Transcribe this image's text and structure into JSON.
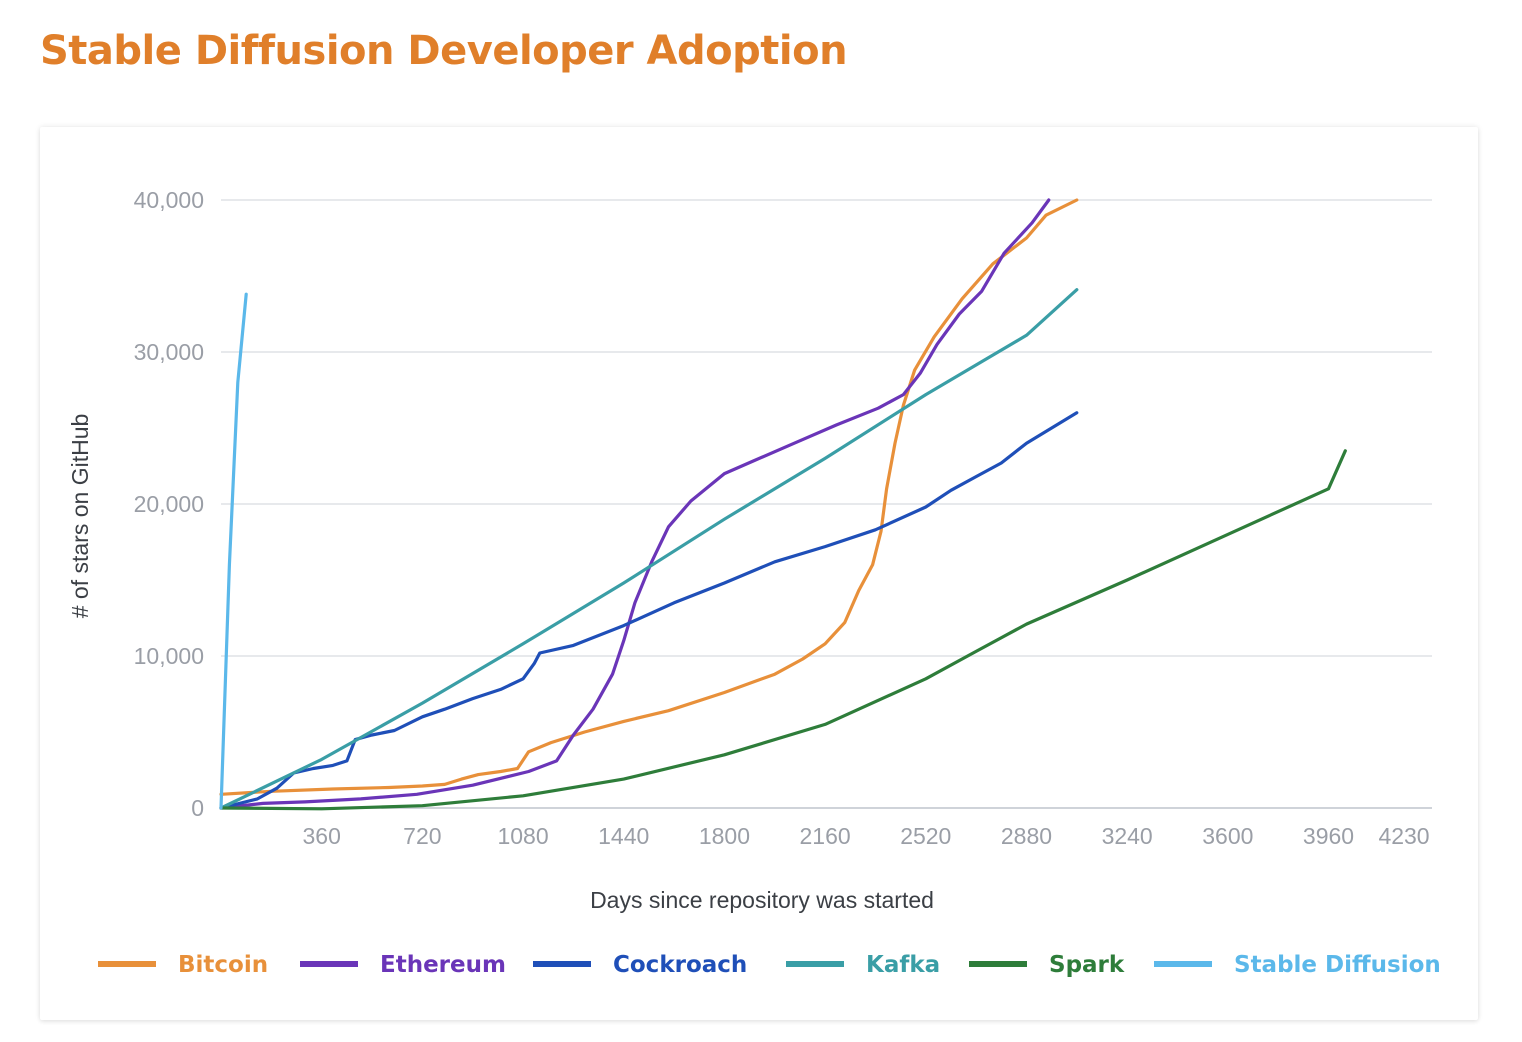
{
  "page": {
    "title": "Stable Diffusion Developer Adoption"
  },
  "chart_data": {
    "type": "line",
    "title": "Stable Diffusion Developer Adoption",
    "xlabel": "Days since repository was started",
    "ylabel": "# of stars on GitHub",
    "xlim": [
      0,
      4330
    ],
    "ylim": [
      0,
      40000
    ],
    "x_ticks": [
      360,
      720,
      1080,
      1440,
      1800,
      2160,
      2520,
      2880,
      3240,
      3600,
      3960,
      4230
    ],
    "x_tick_labels": [
      "360",
      "720",
      "1080",
      "1440",
      "1800",
      "2160",
      "2520",
      "2880",
      "3240",
      "3600",
      "3960",
      "4230"
    ],
    "y_ticks": [
      0,
      10000,
      20000,
      30000,
      40000
    ],
    "y_tick_labels": [
      "0",
      "10,000",
      "20,000",
      "30,000",
      "40,000"
    ],
    "grid": true,
    "legend_position": "bottom",
    "series": [
      {
        "name": "Bitcoin",
        "color": "#e8903a",
        "points": [
          [
            0,
            900
          ],
          [
            180,
            1100
          ],
          [
            400,
            1250
          ],
          [
            600,
            1350
          ],
          [
            720,
            1450
          ],
          [
            800,
            1550
          ],
          [
            860,
            1900
          ],
          [
            920,
            2200
          ],
          [
            1000,
            2400
          ],
          [
            1060,
            2600
          ],
          [
            1100,
            3700
          ],
          [
            1180,
            4300
          ],
          [
            1300,
            5000
          ],
          [
            1440,
            5700
          ],
          [
            1600,
            6400
          ],
          [
            1800,
            7600
          ],
          [
            1980,
            8800
          ],
          [
            2080,
            9800
          ],
          [
            2160,
            10800
          ],
          [
            2230,
            12200
          ],
          [
            2280,
            14300
          ],
          [
            2330,
            16000
          ],
          [
            2360,
            18200
          ],
          [
            2380,
            21000
          ],
          [
            2410,
            24000
          ],
          [
            2440,
            26500
          ],
          [
            2480,
            28800
          ],
          [
            2550,
            31000
          ],
          [
            2650,
            33500
          ],
          [
            2760,
            35800
          ],
          [
            2880,
            37500
          ],
          [
            2950,
            39000
          ],
          [
            3060,
            40000
          ]
        ]
      },
      {
        "name": "Ethereum",
        "color": "#6a35b8",
        "points": [
          [
            0,
            0
          ],
          [
            150,
            300
          ],
          [
            300,
            400
          ],
          [
            500,
            600
          ],
          [
            700,
            900
          ],
          [
            900,
            1500
          ],
          [
            1100,
            2400
          ],
          [
            1200,
            3100
          ],
          [
            1260,
            4800
          ],
          [
            1330,
            6500
          ],
          [
            1400,
            8800
          ],
          [
            1440,
            11000
          ],
          [
            1480,
            13500
          ],
          [
            1540,
            16200
          ],
          [
            1600,
            18500
          ],
          [
            1680,
            20200
          ],
          [
            1800,
            22000
          ],
          [
            1900,
            22800
          ],
          [
            2050,
            24000
          ],
          [
            2200,
            25200
          ],
          [
            2350,
            26300
          ],
          [
            2440,
            27200
          ],
          [
            2500,
            28600
          ],
          [
            2560,
            30500
          ],
          [
            2640,
            32500
          ],
          [
            2720,
            34000
          ],
          [
            2800,
            36500
          ],
          [
            2900,
            38500
          ],
          [
            2960,
            40000
          ]
        ]
      },
      {
        "name": "Cockroach",
        "color": "#1f4fb8",
        "points": [
          [
            0,
            0
          ],
          [
            130,
            600
          ],
          [
            200,
            1300
          ],
          [
            260,
            2300
          ],
          [
            330,
            2600
          ],
          [
            400,
            2800
          ],
          [
            450,
            3100
          ],
          [
            480,
            4500
          ],
          [
            540,
            4800
          ],
          [
            620,
            5100
          ],
          [
            720,
            6000
          ],
          [
            800,
            6500
          ],
          [
            900,
            7200
          ],
          [
            1000,
            7800
          ],
          [
            1080,
            8500
          ],
          [
            1120,
            9500
          ],
          [
            1140,
            10200
          ],
          [
            1260,
            10700
          ],
          [
            1440,
            12000
          ],
          [
            1620,
            13500
          ],
          [
            1800,
            14800
          ],
          [
            1980,
            16200
          ],
          [
            2160,
            17200
          ],
          [
            2340,
            18300
          ],
          [
            2520,
            19800
          ],
          [
            2610,
            20900
          ],
          [
            2700,
            21800
          ],
          [
            2790,
            22700
          ],
          [
            2880,
            24000
          ],
          [
            3060,
            26000
          ]
        ]
      },
      {
        "name": "Kafka",
        "color": "#3a9ea6",
        "points": [
          [
            0,
            0
          ],
          [
            360,
            3200
          ],
          [
            720,
            6900
          ],
          [
            1080,
            10800
          ],
          [
            1440,
            14800
          ],
          [
            1800,
            19000
          ],
          [
            2160,
            23000
          ],
          [
            2520,
            27200
          ],
          [
            2880,
            31100
          ],
          [
            3060,
            34100
          ]
        ]
      },
      {
        "name": "Spark",
        "color": "#2e7d3a",
        "points": [
          [
            0,
            0
          ],
          [
            360,
            -50
          ],
          [
            720,
            150
          ],
          [
            1080,
            800
          ],
          [
            1440,
            1900
          ],
          [
            1800,
            3500
          ],
          [
            2160,
            5500
          ],
          [
            2520,
            8500
          ],
          [
            2700,
            10300
          ],
          [
            2880,
            12100
          ],
          [
            3240,
            15000
          ],
          [
            3600,
            18000
          ],
          [
            3960,
            21000
          ],
          [
            4020,
            23500
          ]
        ]
      },
      {
        "name": "Stable Diffusion",
        "color": "#5bb8ea",
        "points": [
          [
            0,
            0
          ],
          [
            30,
            16000
          ],
          [
            60,
            28000
          ],
          [
            90,
            33800
          ]
        ]
      }
    ]
  }
}
